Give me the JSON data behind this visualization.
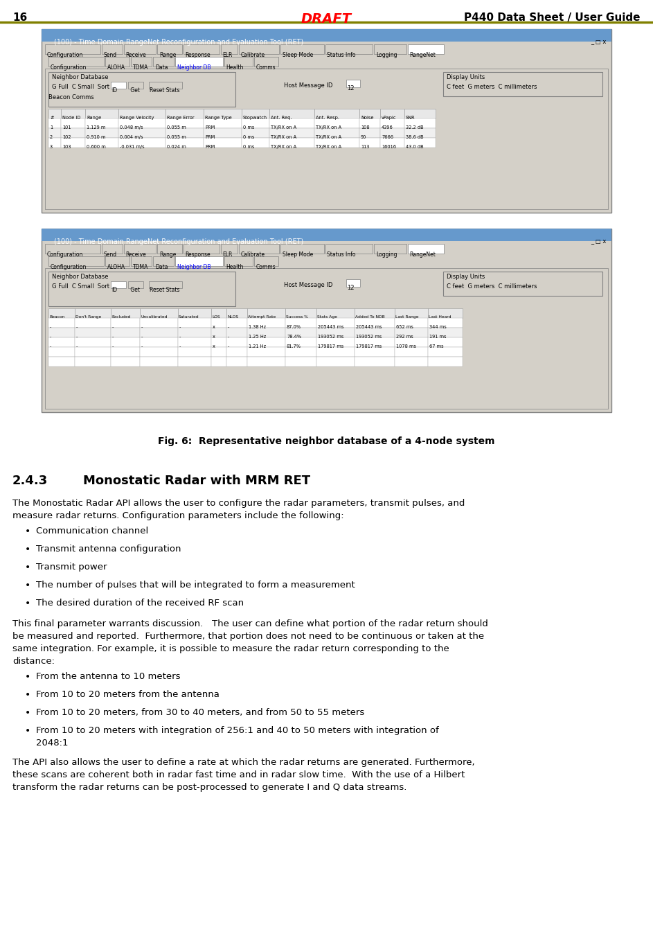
{
  "page_number": "16",
  "header_title": "DRAFT",
  "header_right": "P440 Data Sheet / User Guide",
  "header_color": "#ff0000",
  "header_line_color": "#808000",
  "fig_caption": "Fig. 6:  Representative neighbor database of a 4-node system",
  "section_number": "2.4.3",
  "section_title": "Monostatic Radar with MRM RET",
  "body_text1": "The Monostatic Radar API allows the user to configure the radar parameters, transmit pulses, and\nmeasure radar returns. Configuration parameters include the following:",
  "bullets1": [
    "Communication channel",
    "Transmit antenna configuration",
    "Transmit power",
    "The number of pulses that will be integrated to form a measurement",
    "The desired duration of the received RF scan"
  ],
  "body_text2": "This final parameter warrants discussion.   The user can define what portion of the radar return should\nbe measured and reported.  Furthermore, that portion does not need to be continuous or taken at the\nsame integration. For example, it is possible to measure the radar return corresponding to the\ndistance:",
  "bullets2": [
    "From the antenna to 10 meters",
    "From 10 to 20 meters from the antenna",
    "From 10 to 20 meters, from 30 to 40 meters, and from 50 to 55 meters",
    "From 10 to 20 meters with integration of 256:1 and 40 to 50 meters with integration of\n2048:1"
  ],
  "body_text3": "The API also allows the user to define a rate at which the radar returns are generated. Furthermore,\nthese scans are coherent both in radar fast time and in radar slow time.  With the use of a Hilbert\ntransform the radar returns can be post-processed to generate I and Q data streams.",
  "bg_color": "#ffffff",
  "text_color": "#000000",
  "window_title": "(100) - Time Domain RangeNet Reconfiguration and Evaluation Tool (RET)",
  "window_bg": "#d4d0c8",
  "window_title_bg1": "#6699cc",
  "window_title_bg2": "#c8ddf0",
  "tab_bar1": [
    "Configuration",
    "Send",
    "Receive",
    "Range",
    "Response",
    "ELR",
    "Calibrate",
    "Sleep Mode",
    "Status Info",
    "Logging",
    "RangeNet"
  ],
  "tab_bar2": [
    "Configuration",
    "ALOHA",
    "TDMA",
    "Data",
    "Neighbor DB",
    "Health",
    "Comms"
  ],
  "table1_headers": [
    "#",
    "Node ID",
    "Range",
    "Range Velocity",
    "Range Error",
    "Range Type",
    "Stopwatch",
    "Ant. Req.",
    "Ant. Resp.",
    "Noise",
    "vPapic",
    "SNR"
  ],
  "table1_rows": [
    [
      "1",
      "101",
      "1.129 m",
      "0.048 m/s",
      "0.055 m",
      "PRM",
      "0 ms",
      "TX/RX on A",
      "TX/RX on A",
      "108",
      "4396",
      "32.2 dB"
    ],
    [
      "2",
      "102",
      "0.910 m",
      "0.004 m/s",
      "0.055 m",
      "PRM",
      "0 ms",
      "TX/RX on A",
      "TX/RX on A",
      "90",
      "7666",
      "38.6 dB"
    ],
    [
      "3",
      "103",
      "0.600 m",
      "-0.031 m/s",
      "0.024 m",
      "PRM",
      "0 ms",
      "TX/RX on A",
      "TX/RX on A",
      "113",
      "16016",
      "43.0 dB"
    ]
  ],
  "table2_headers": [
    "Beacon",
    "Don't Range",
    "Excluded",
    "Uncalibrated",
    "Saturated",
    "LOS",
    "NLOS",
    "Attempt Rate",
    "Success %",
    "Stats Age",
    "Added To NDB",
    "Last Range",
    "Last Heard"
  ],
  "table2_rows": [
    [
      "-",
      "-",
      "-",
      "-",
      "-",
      "x",
      "-",
      "1.38 Hz",
      "87.0%",
      "205443 ms",
      "205443 ms",
      "652 ms",
      "344 ms"
    ],
    [
      "-",
      "-",
      "-",
      "-",
      "-",
      "x",
      "-",
      "1.25 Hz",
      "78.4%",
      "193052 ms",
      "193052 ms",
      "292 ms",
      "191 ms"
    ],
    [
      "-",
      "-",
      "-",
      "-",
      "-",
      "x",
      "-",
      "1.21 Hz",
      "81.7%",
      "179817 ms",
      "179817 ms",
      "1078 ms",
      "67 ms"
    ]
  ]
}
